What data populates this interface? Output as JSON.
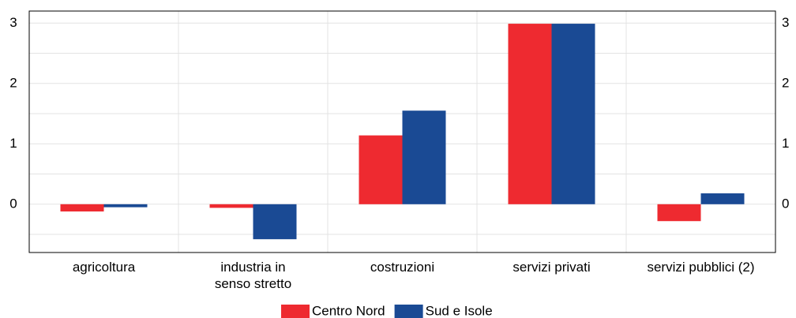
{
  "chart_data": {
    "type": "bar",
    "categories": [
      "agricoltura",
      "industria in\nsenso stretto",
      "costruzioni",
      "servizi privati",
      "servizi pubblici (2)"
    ],
    "series": [
      {
        "name": "Centro Nord",
        "color": "#ee2a30",
        "values": [
          -0.12,
          -0.06,
          1.14,
          2.99,
          -0.28
        ]
      },
      {
        "name": "Sud e Isole",
        "color": "#1a4a94",
        "values": [
          -0.05,
          -0.58,
          1.55,
          2.99,
          0.18
        ]
      }
    ],
    "ylim": [
      -0.8,
      3.2
    ],
    "yticks": [
      0,
      1,
      2,
      3
    ],
    "minor_yticks": [
      -0.5,
      0.5,
      1.5,
      2.5
    ],
    "grid": true,
    "legend": "bottom"
  }
}
